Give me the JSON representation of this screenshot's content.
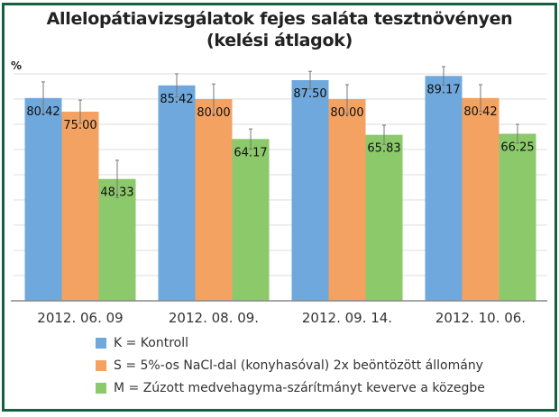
{
  "chart_data": {
    "type": "bar",
    "title": "Allelopátiavizsgálatok fejes saláta tesztnövényen",
    "subtitle": "(kelési átlagok)",
    "ylabel": "%",
    "ylim": [
      0,
      90
    ],
    "grid": true,
    "categories": [
      "2012. 06. 09",
      "2012. 08. 09.",
      "2012. 09. 14.",
      "2012. 10. 06."
    ],
    "series": [
      {
        "name": "K = Kontroll",
        "color": "#6fa8dc",
        "values": [
          80.42,
          85.42,
          87.5,
          89.17
        ],
        "labels": [
          "80.42",
          "85.42",
          "87.50",
          "89.17"
        ],
        "errors": [
          6.4,
          4.6,
          3.5,
          3.7
        ]
      },
      {
        "name": "S = 5%-os NaCl-dal (konyhasóval) 2x beöntözött állomány",
        "color": "#f4a261",
        "values": [
          75.0,
          80.0,
          80.0,
          80.42
        ],
        "labels": [
          "75.00",
          "80.00",
          "80.00",
          "80.42"
        ],
        "errors": [
          4.6,
          6.0,
          5.7,
          5.3
        ]
      },
      {
        "name": "M = Zúzott medvehagyma-szárítmányt keverve a közegbe",
        "color": "#8cc96b",
        "values": [
          48.33,
          64.17,
          65.83,
          66.25
        ],
        "labels": [
          "48.33",
          "64.17",
          "65.83",
          "66.25"
        ],
        "errors": [
          7.4,
          4.0,
          3.8,
          3.75
        ]
      }
    ],
    "legend_position": "bottom"
  }
}
